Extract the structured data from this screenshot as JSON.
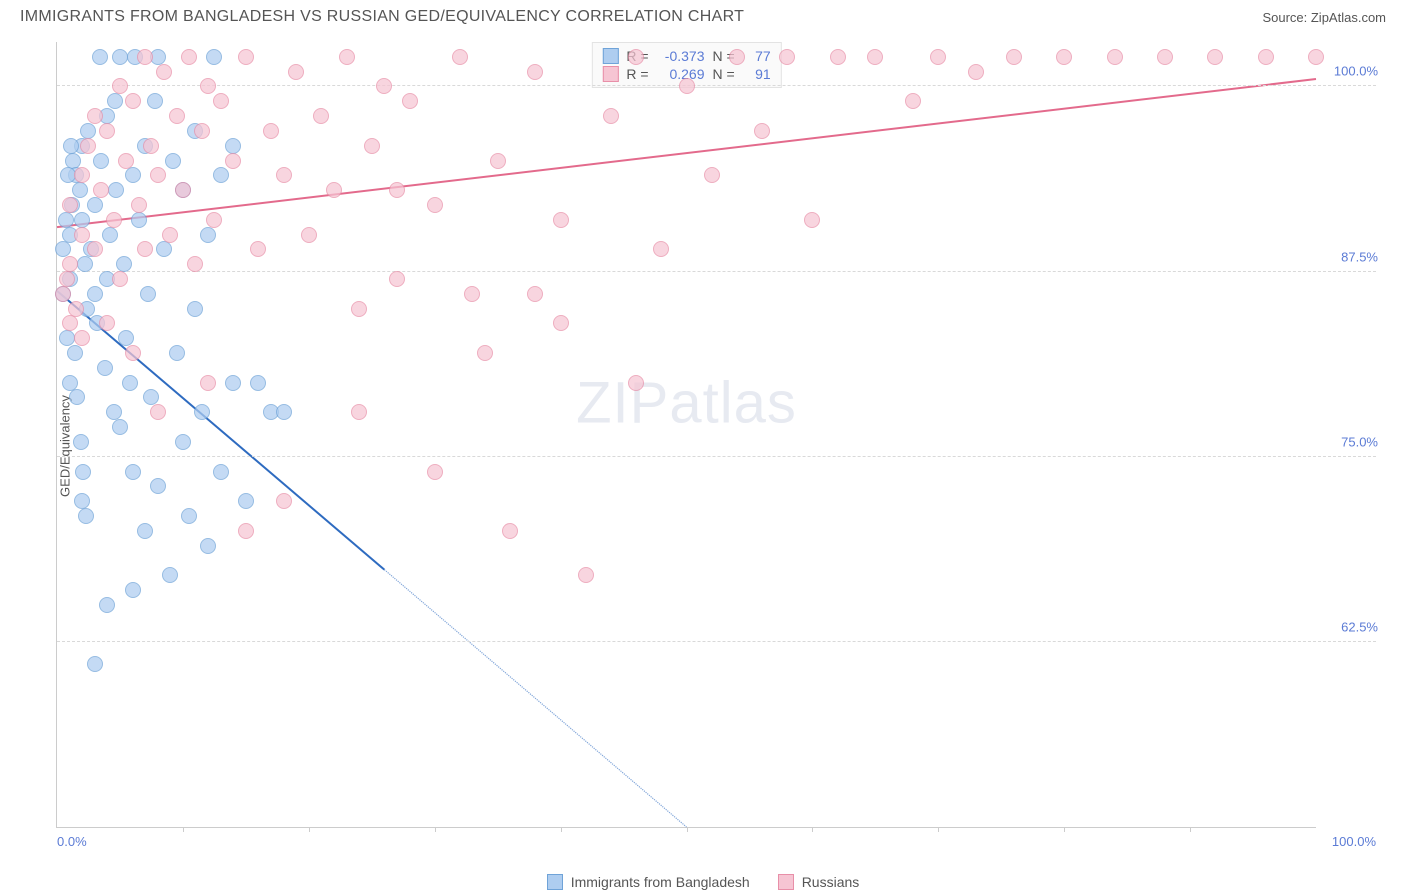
{
  "title": "IMMIGRANTS FROM BANGLADESH VS RUSSIAN GED/EQUIVALENCY CORRELATION CHART",
  "source": "Source: ZipAtlas.com",
  "ylabel": "GED/Equivalency",
  "watermark": {
    "part1": "ZIP",
    "part2": "atlas"
  },
  "chart": {
    "type": "scatter",
    "xlim": [
      0,
      100
    ],
    "ylim": [
      50,
      103
    ],
    "background_color": "#ffffff",
    "grid_color": "#d9d9d9",
    "axis_color": "#cccccc",
    "tick_label_color": "#5b7bd5",
    "yticks": [
      {
        "v": 62.5,
        "label": "62.5%"
      },
      {
        "v": 75.0,
        "label": "75.0%"
      },
      {
        "v": 87.5,
        "label": "87.5%"
      },
      {
        "v": 100.0,
        "label": "100.0%"
      }
    ],
    "xticks": [
      {
        "v": 0,
        "label": "0.0%"
      },
      {
        "v": 100,
        "label": "100.0%"
      }
    ],
    "xticks_minor": [
      10,
      20,
      30,
      40,
      50,
      60,
      70,
      80,
      90
    ],
    "marker_radius": 8,
    "marker_opacity": 0.72,
    "series": [
      {
        "name": "Immigrants from Bangladesh",
        "color_fill": "#aecdf0",
        "color_stroke": "#6fa3d8",
        "R": "-0.373",
        "N": "77",
        "trend": {
          "x1": 0,
          "y1": 86.2,
          "x2": 50,
          "y2": 50,
          "solid_until_x": 26,
          "stroke": "#2e6bc0",
          "width": 2
        },
        "points": [
          [
            1,
            87
          ],
          [
            1,
            90
          ],
          [
            1.2,
            92
          ],
          [
            1.3,
            95
          ],
          [
            1.5,
            94
          ],
          [
            1.8,
            93
          ],
          [
            2,
            96
          ],
          [
            2,
            91
          ],
          [
            2.2,
            88
          ],
          [
            2.4,
            85
          ],
          [
            2.5,
            97
          ],
          [
            2.7,
            89
          ],
          [
            3,
            86
          ],
          [
            3,
            92
          ],
          [
            3.2,
            84
          ],
          [
            3.5,
            95
          ],
          [
            3.8,
            81
          ],
          [
            4,
            98
          ],
          [
            4,
            87
          ],
          [
            4.2,
            90
          ],
          [
            4.5,
            78
          ],
          [
            4.7,
            93
          ],
          [
            5,
            102
          ],
          [
            5,
            77
          ],
          [
            5.3,
            88
          ],
          [
            5.5,
            83
          ],
          [
            5.8,
            80
          ],
          [
            6,
            94
          ],
          [
            6,
            74
          ],
          [
            6.5,
            91
          ],
          [
            7,
            96
          ],
          [
            7,
            70
          ],
          [
            7.2,
            86
          ],
          [
            7.5,
            79
          ],
          [
            8,
            102
          ],
          [
            8,
            73
          ],
          [
            8.5,
            89
          ],
          [
            9,
            67
          ],
          [
            9.5,
            82
          ],
          [
            10,
            76
          ],
          [
            10,
            93
          ],
          [
            10.5,
            71
          ],
          [
            11,
            85
          ],
          [
            11.5,
            78
          ],
          [
            12,
            69
          ],
          [
            12.5,
            102
          ],
          [
            13,
            74
          ],
          [
            14,
            80
          ],
          [
            15,
            72
          ],
          [
            3,
            61
          ],
          [
            4,
            65
          ],
          [
            6,
            66
          ],
          [
            2,
            72
          ],
          [
            1,
            80
          ],
          [
            0.8,
            83
          ],
          [
            0.5,
            86
          ],
          [
            0.5,
            89
          ],
          [
            0.7,
            91
          ],
          [
            0.9,
            94
          ],
          [
            1.1,
            96
          ],
          [
            1.4,
            82
          ],
          [
            1.6,
            79
          ],
          [
            1.9,
            76
          ],
          [
            2.1,
            74
          ],
          [
            2.3,
            71
          ],
          [
            17,
            78
          ],
          [
            18,
            78
          ],
          [
            13,
            94
          ],
          [
            14,
            96
          ],
          [
            6.2,
            102
          ],
          [
            3.4,
            102
          ],
          [
            4.6,
            99
          ],
          [
            7.8,
            99
          ],
          [
            9.2,
            95
          ],
          [
            11,
            97
          ],
          [
            12,
            90
          ],
          [
            16,
            80
          ]
        ]
      },
      {
        "name": "Russians",
        "color_fill": "#f6c5d3",
        "color_stroke": "#e88fa8",
        "R": "0.269",
        "N": "91",
        "trend": {
          "x1": 0,
          "y1": 90.5,
          "x2": 100,
          "y2": 100.5,
          "solid_until_x": 100,
          "stroke": "#e36a8c",
          "width": 2
        },
        "points": [
          [
            0.5,
            86
          ],
          [
            1,
            88
          ],
          [
            1,
            92
          ],
          [
            1.5,
            85
          ],
          [
            2,
            90
          ],
          [
            2,
            94
          ],
          [
            2.5,
            96
          ],
          [
            3,
            89
          ],
          [
            3,
            98
          ],
          [
            3.5,
            93
          ],
          [
            4,
            97
          ],
          [
            4.5,
            91
          ],
          [
            5,
            100
          ],
          [
            5,
            87
          ],
          [
            5.5,
            95
          ],
          [
            6,
            99
          ],
          [
            6.5,
            92
          ],
          [
            7,
            102
          ],
          [
            7,
            89
          ],
          [
            7.5,
            96
          ],
          [
            8,
            94
          ],
          [
            8.5,
            101
          ],
          [
            9,
            90
          ],
          [
            9.5,
            98
          ],
          [
            10,
            93
          ],
          [
            10.5,
            102
          ],
          [
            11,
            88
          ],
          [
            11.5,
            97
          ],
          [
            12,
            100
          ],
          [
            12.5,
            91
          ],
          [
            13,
            99
          ],
          [
            14,
            95
          ],
          [
            15,
            102
          ],
          [
            16,
            89
          ],
          [
            17,
            97
          ],
          [
            18,
            94
          ],
          [
            19,
            101
          ],
          [
            20,
            90
          ],
          [
            21,
            98
          ],
          [
            22,
            93
          ],
          [
            23,
            102
          ],
          [
            24,
            85
          ],
          [
            25,
            96
          ],
          [
            26,
            100
          ],
          [
            27,
            87
          ],
          [
            28,
            99
          ],
          [
            30,
            92
          ],
          [
            32,
            102
          ],
          [
            34,
            82
          ],
          [
            35,
            95
          ],
          [
            36,
            70
          ],
          [
            38,
            101
          ],
          [
            40,
            91
          ],
          [
            42,
            67
          ],
          [
            44,
            98
          ],
          [
            46,
            102
          ],
          [
            48,
            89
          ],
          [
            50,
            100
          ],
          [
            52,
            94
          ],
          [
            54,
            102
          ],
          [
            56,
            97
          ],
          [
            58,
            102
          ],
          [
            60,
            91
          ],
          [
            62,
            102
          ],
          [
            65,
            102
          ],
          [
            68,
            99
          ],
          [
            70,
            102
          ],
          [
            73,
            101
          ],
          [
            76,
            102
          ],
          [
            80,
            102
          ],
          [
            84,
            102
          ],
          [
            88,
            102
          ],
          [
            92,
            102
          ],
          [
            96,
            102
          ],
          [
            100,
            102
          ],
          [
            15,
            70
          ],
          [
            18,
            72
          ],
          [
            24,
            78
          ],
          [
            30,
            74
          ],
          [
            12,
            80
          ],
          [
            8,
            78
          ],
          [
            6,
            82
          ],
          [
            4,
            84
          ],
          [
            2,
            83
          ],
          [
            1,
            84
          ],
          [
            0.8,
            87
          ],
          [
            33,
            86
          ],
          [
            40,
            84
          ],
          [
            46,
            80
          ],
          [
            27,
            93
          ],
          [
            38,
            86
          ]
        ]
      }
    ]
  },
  "legend": {
    "items": [
      {
        "label": "Immigrants from Bangladesh",
        "fill": "#aecdf0",
        "stroke": "#6fa3d8"
      },
      {
        "label": "Russians",
        "fill": "#f6c5d3",
        "stroke": "#e88fa8"
      }
    ]
  },
  "stat_box": {
    "rows": [
      {
        "swatch_fill": "#aecdf0",
        "swatch_stroke": "#6fa3d8",
        "r_label": "R =",
        "r_val": "-0.373",
        "n_label": "N =",
        "n_val": "77"
      },
      {
        "swatch_fill": "#f6c5d3",
        "swatch_stroke": "#e88fa8",
        "r_label": "R =",
        "r_val": "0.269",
        "n_label": "N =",
        "n_val": "91"
      }
    ]
  }
}
